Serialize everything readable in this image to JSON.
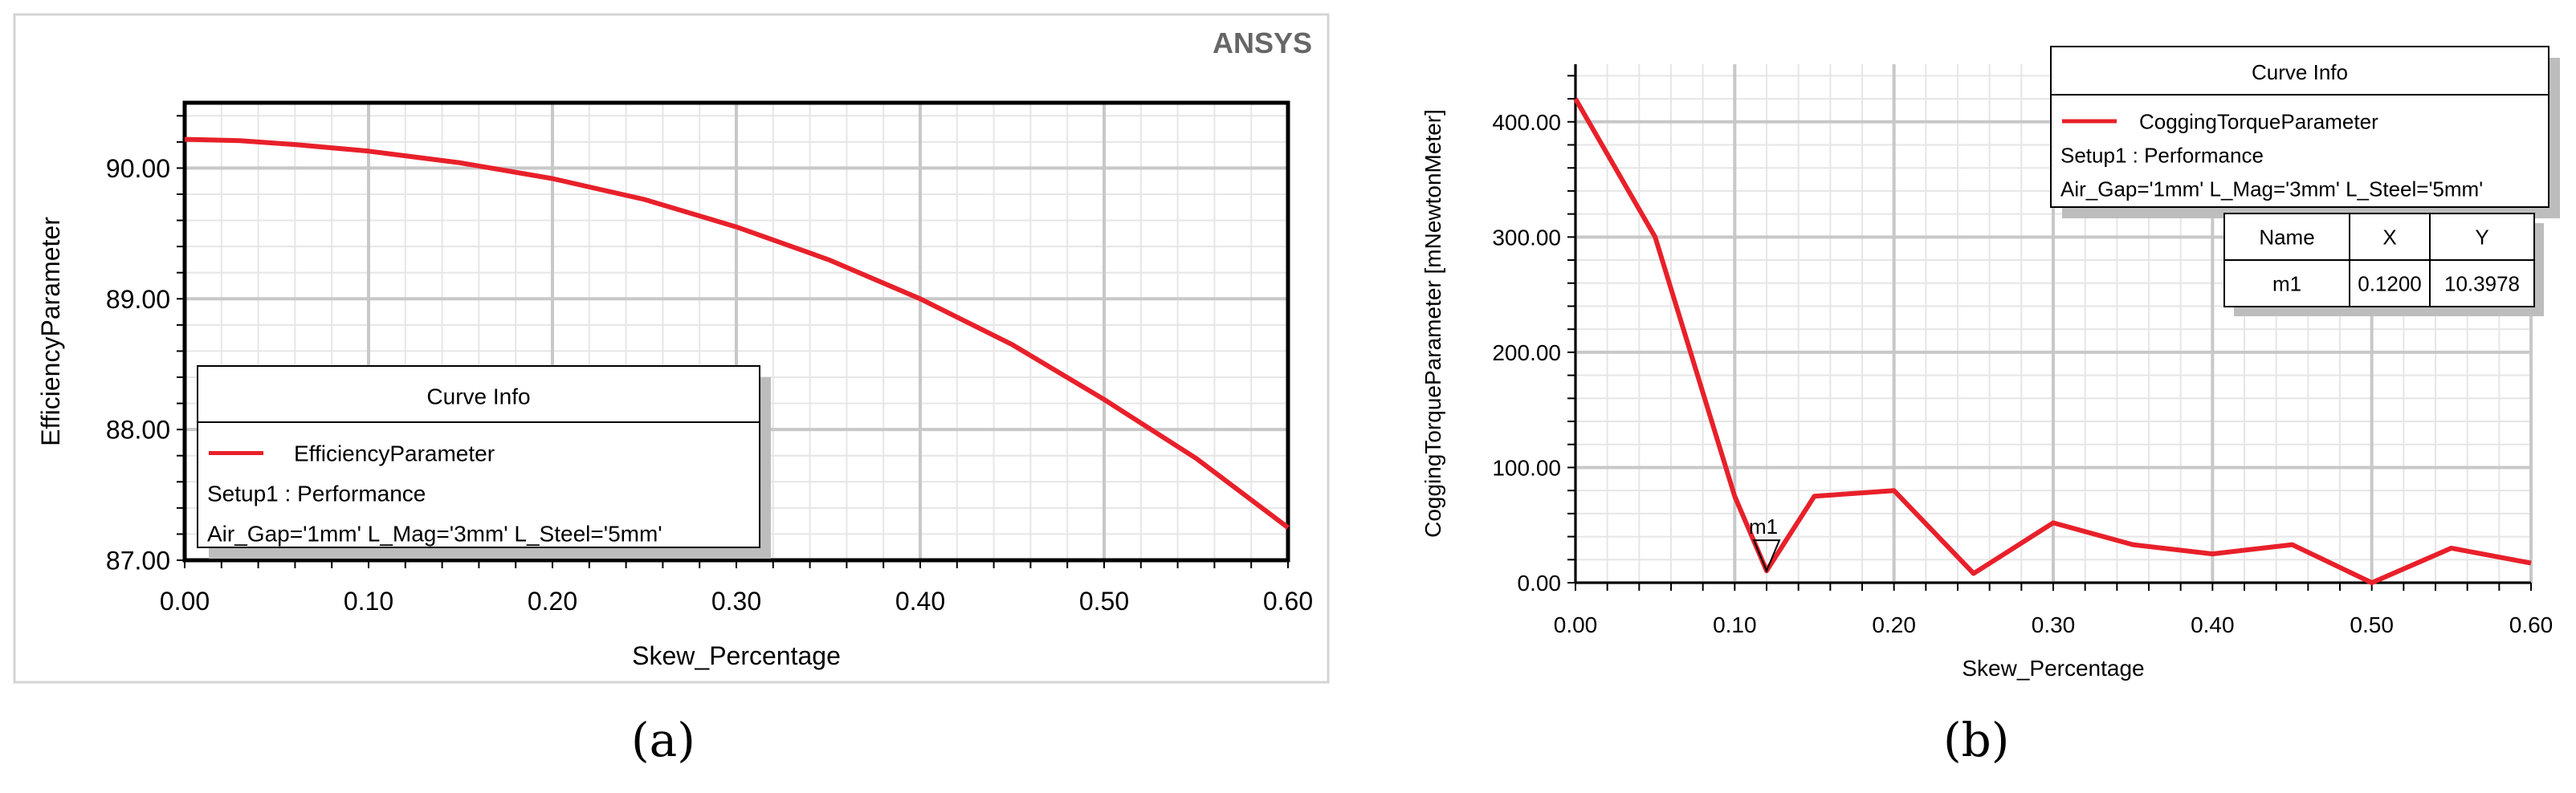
{
  "brand": "ANSYS",
  "colors": {
    "curve": "#e8202a",
    "legend_shadow": "#bdbdbd",
    "grid_major": "#c8c8c8",
    "grid_minor": "#e6e6e6"
  },
  "chart_data": [
    {
      "type": "line",
      "panel_label": "(a)",
      "xlabel": "Skew_Percentage",
      "ylabel": "EfficiencyParameter",
      "xlim": [
        0,
        0.6
      ],
      "ylim": [
        87.0,
        90.5
      ],
      "xticks": [
        0.0,
        0.1,
        0.2,
        0.3,
        0.4,
        0.5,
        0.6
      ],
      "xtick_labels": [
        "0.00",
        "0.10",
        "0.20",
        "0.30",
        "0.40",
        "0.50",
        "0.60"
      ],
      "yticks": [
        87.0,
        88.0,
        89.0,
        90.0
      ],
      "ytick_labels": [
        "87.00",
        "88.00",
        "89.00",
        "90.00"
      ],
      "grid": true,
      "legend": {
        "title": "Curve Info",
        "placement": "bottom-left",
        "entry": "EfficiencyParameter",
        "lines": [
          "Setup1 : Performance",
          "Air_Gap='1mm' L_Mag='3mm' L_Steel='5mm'"
        ]
      },
      "series": [
        {
          "name": "EfficiencyParameter",
          "x": [
            0.0,
            0.03,
            0.06,
            0.1,
            0.15,
            0.2,
            0.25,
            0.3,
            0.35,
            0.4,
            0.45,
            0.5,
            0.55,
            0.6
          ],
          "y": [
            90.22,
            90.21,
            90.18,
            90.13,
            90.04,
            89.92,
            89.76,
            89.55,
            89.3,
            89.0,
            88.65,
            88.23,
            87.78,
            87.25
          ]
        }
      ]
    },
    {
      "type": "line",
      "panel_label": "(b)",
      "xlabel": "Skew_Percentage",
      "ylabel": "CoggingTorqueParameter [mNewtonMeter]",
      "xlim": [
        0,
        0.6
      ],
      "ylim": [
        0,
        450
      ],
      "xticks": [
        0.0,
        0.1,
        0.2,
        0.3,
        0.4,
        0.5,
        0.6
      ],
      "xtick_labels": [
        "0.00",
        "0.10",
        "0.20",
        "0.30",
        "0.40",
        "0.50",
        "0.60"
      ],
      "yticks": [
        0,
        100,
        200,
        300,
        400
      ],
      "ytick_labels": [
        "0.00",
        "100.00",
        "200.00",
        "300.00",
        "400.00"
      ],
      "grid": true,
      "legend": {
        "title": "Curve Info",
        "placement": "top-right",
        "entry": "CoggingTorqueParameter",
        "lines": [
          "Setup1 : Performance",
          "Air_Gap='1mm' L_Mag='3mm' L_Steel='5mm'"
        ]
      },
      "marker": {
        "name": "m1",
        "headers": [
          "Name",
          "X",
          "Y"
        ],
        "row": [
          "m1",
          "0.1200",
          "10.3978"
        ],
        "x": 0.12,
        "y": 10.3978
      },
      "series": [
        {
          "name": "CoggingTorqueParameter",
          "x": [
            0.0,
            0.05,
            0.1,
            0.12,
            0.15,
            0.2,
            0.25,
            0.3,
            0.35,
            0.4,
            0.45,
            0.5,
            0.55,
            0.6
          ],
          "y": [
            420,
            300,
            75,
            10.4,
            75,
            80,
            8,
            52,
            33,
            25,
            33,
            0,
            30,
            17
          ]
        }
      ]
    }
  ]
}
